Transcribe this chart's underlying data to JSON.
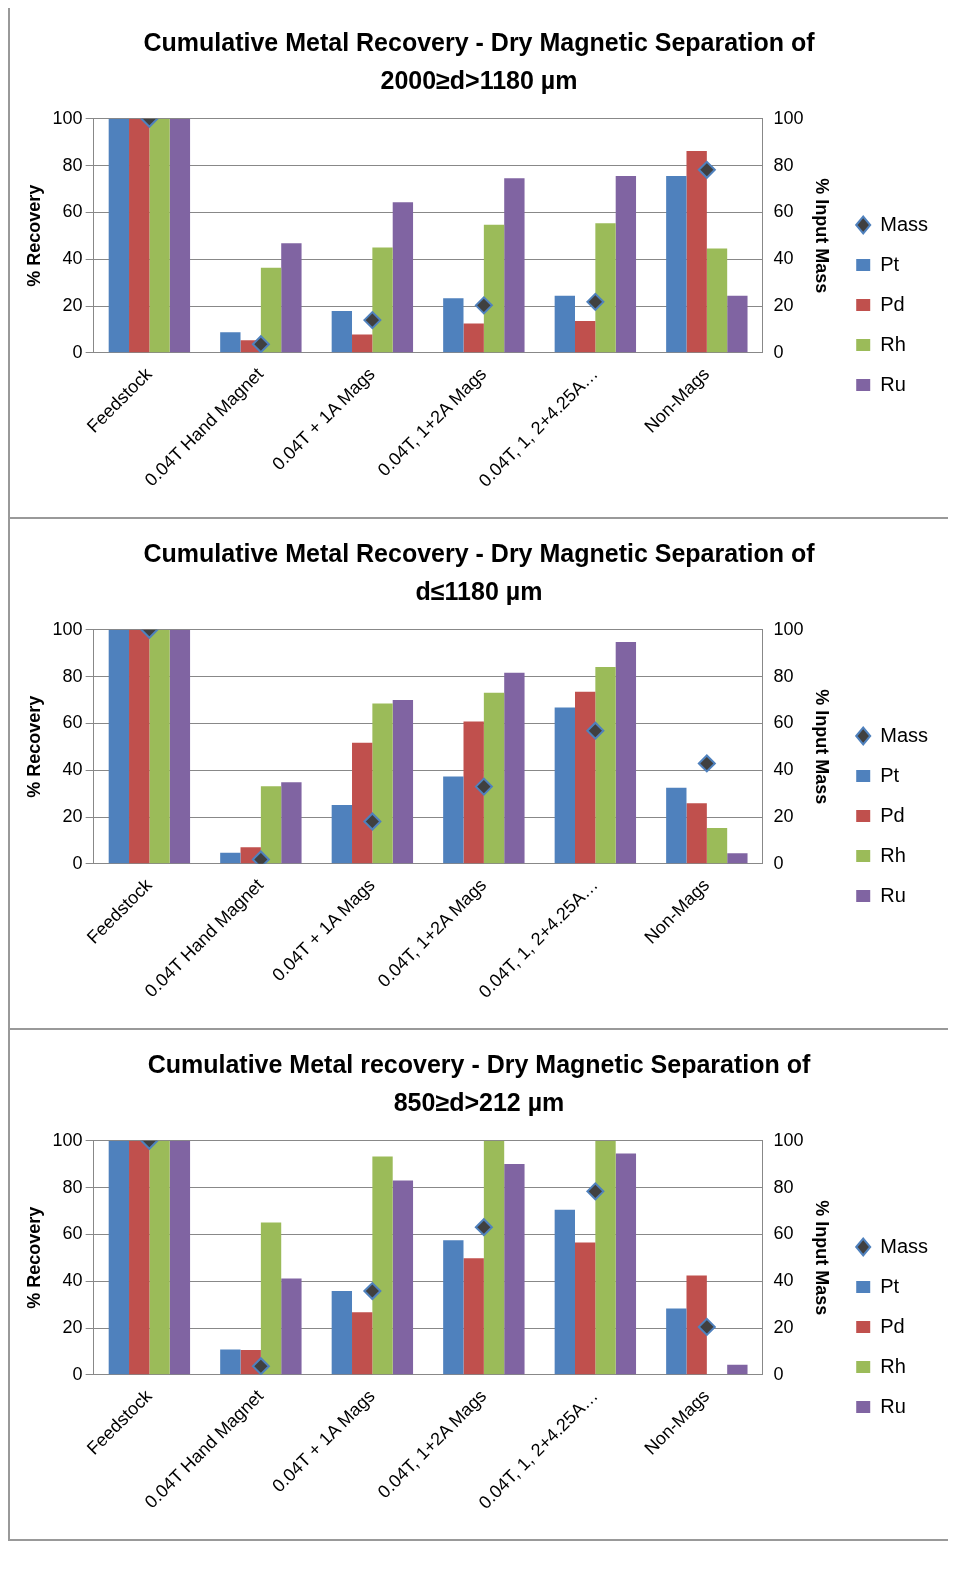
{
  "chart_data": [
    {
      "type": "bar",
      "title": "Cumulative Metal Recovery - Dry Magnetic Separation of 2000≥d>1180 µm",
      "ylabel": "% Recovery",
      "y2label": "% Input Mass",
      "categories": [
        "Feedstock",
        "0.04T Hand Magnet",
        "0.04T + 1A Mags",
        "0.04T, 1+2A Mags",
        "0.04T, 1, 2+4.25A…",
        "Non-Mags"
      ],
      "ylim": [
        0,
        100
      ],
      "yticks": [
        0,
        20,
        40,
        60,
        80,
        100
      ],
      "y2lim": [
        0,
        100
      ],
      "y2ticks": [
        0,
        20,
        40,
        60,
        80,
        100
      ],
      "grid": "y",
      "legend": "right",
      "series": [
        {
          "name": "Pt",
          "color": "#4f81bd",
          "values": [
            100,
            8.8,
            17.9,
            23.3,
            24.4,
            75.6
          ]
        },
        {
          "name": "Pd",
          "color": "#c0504d",
          "values": [
            100,
            5.4,
            7.8,
            12.5,
            13.6,
            86.2
          ]
        },
        {
          "name": "Rh",
          "color": "#9bbb59",
          "values": [
            100,
            36.4,
            45,
            54.7,
            55.4,
            44.6
          ]
        },
        {
          "name": "Ru",
          "color": "#8064a2",
          "values": [
            100,
            46.8,
            64.4,
            74.6,
            75.6,
            24.4
          ]
        },
        {
          "name": "Mass",
          "type": "scatter",
          "axis": "y2",
          "marker": "diamond",
          "color": "#404040",
          "x": [
            "Feedstock",
            "0.04T Hand Magnet",
            "0.04T + 1A Mags",
            "0.04T, 1+2A Mags",
            "0.04T, 1, 2+4.25A…",
            "Non-Mags"
          ],
          "values": [
            100,
            3.7,
            14,
            20.3,
            21.8,
            78.2
          ]
        }
      ]
    },
    {
      "type": "bar",
      "title": "Cumulative Metal Recovery - Dry Magnetic Separation of d≤1180 µm",
      "ylabel": "% Recovery",
      "y2label": "% Input Mass",
      "categories": [
        "Feedstock",
        "0.04T Hand Magnet",
        "0.04T + 1A Mags",
        "0.04T, 1+2A Mags",
        "0.04T, 1, 2+4.25A…",
        "Non-Mags"
      ],
      "ylim": [
        0,
        100
      ],
      "yticks": [
        0,
        20,
        40,
        60,
        80,
        100
      ],
      "y2lim": [
        0,
        100
      ],
      "y2ticks": [
        0,
        20,
        40,
        60,
        80,
        100
      ],
      "grid": "y",
      "legend": "right",
      "series": [
        {
          "name": "Pt",
          "color": "#4f81bd",
          "values": [
            100,
            4.7,
            25.2,
            37.3,
            66.8,
            32.5
          ]
        },
        {
          "name": "Pd",
          "color": "#c0504d",
          "values": [
            100,
            7.1,
            51.7,
            60.8,
            73.5,
            25.9
          ]
        },
        {
          "name": "Rh",
          "color": "#9bbb59",
          "values": [
            100,
            33.2,
            68.5,
            73.1,
            84.1,
            15.3
          ]
        },
        {
          "name": "Ru",
          "color": "#8064a2",
          "values": [
            100,
            34.9,
            70,
            81.7,
            94.8,
            4.5
          ]
        },
        {
          "name": "Mass",
          "type": "scatter",
          "axis": "y2",
          "marker": "diamond",
          "color": "#404040",
          "x": [
            "Feedstock",
            "0.04T Hand Magnet",
            "0.04T + 1A Mags",
            "0.04T, 1+2A Mags",
            "0.04T, 1, 2+4.25A…",
            "Non-Mags"
          ],
          "values": [
            100,
            1.9,
            18.1,
            33,
            56.9,
            42.9
          ]
        }
      ]
    },
    {
      "type": "bar",
      "title": "Cumulative Metal recovery - Dry Magnetic Separation of 850≥d>212 µm",
      "ylabel": "% Recovery",
      "y2label": "% Input Mass",
      "categories": [
        "Feedstock",
        "0.04T Hand Magnet",
        "0.04T + 1A Mags",
        "0.04T, 1+2A Mags",
        "0.04T, 1, 2+4.25A…",
        "Non-Mags"
      ],
      "ylim": [
        0,
        100
      ],
      "yticks": [
        0,
        20,
        40,
        60,
        80,
        100
      ],
      "y2lim": [
        0,
        100
      ],
      "y2ticks": [
        0,
        20,
        40,
        60,
        80,
        100
      ],
      "grid": "y",
      "legend": "right",
      "series": [
        {
          "name": "Pt",
          "color": "#4f81bd",
          "values": [
            100,
            10.8,
            35.8,
            57.5,
            70.5,
            28.4
          ]
        },
        {
          "name": "Pd",
          "color": "#c0504d",
          "values": [
            100,
            10.6,
            26.7,
            49.8,
            56.5,
            42.5
          ]
        },
        {
          "name": "Rh",
          "color": "#9bbb59",
          "values": [
            100,
            65.1,
            93.3,
            100,
            100,
            0
          ]
        },
        {
          "name": "Ru",
          "color": "#8064a2",
          "values": [
            100,
            41.2,
            83,
            90.1,
            94.6,
            4.3
          ]
        },
        {
          "name": "Mass",
          "type": "scatter",
          "axis": "y2",
          "marker": "diamond",
          "color": "#404040",
          "x": [
            "Feedstock",
            "0.04T Hand Magnet",
            "0.04T + 1A Mags",
            "0.04T, 1+2A Mags",
            "0.04T, 1, 2+4.25A…",
            "Non-Mags"
          ],
          "values": [
            100,
            3.7,
            35.8,
            63.1,
            78.4,
            20.5
          ]
        }
      ]
    }
  ]
}
